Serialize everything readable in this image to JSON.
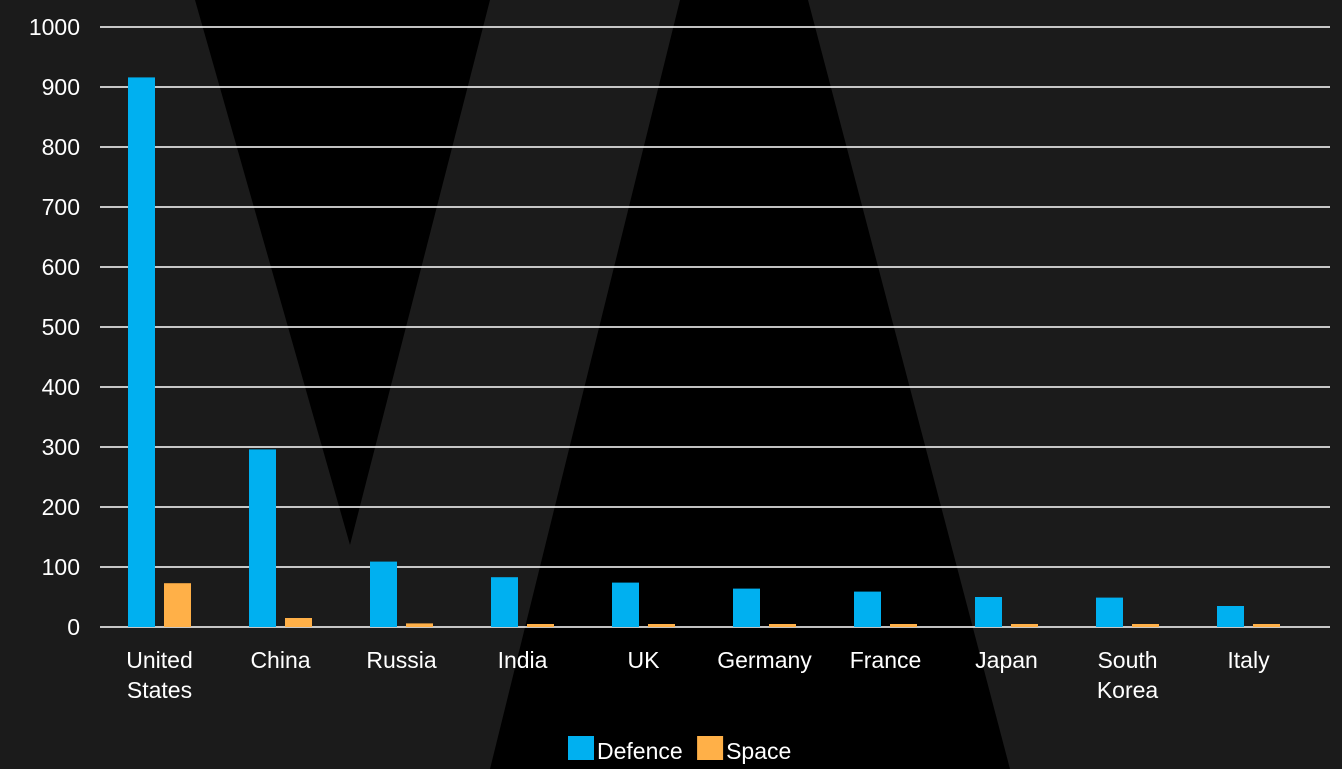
{
  "chart_data": {
    "type": "bar",
    "title": "",
    "xlabel": "",
    "ylabel": "",
    "ylim": [
      0,
      1000
    ],
    "yticks": [
      0,
      100,
      200,
      300,
      400,
      500,
      600,
      700,
      800,
      900,
      1000
    ],
    "grid": true,
    "legend_position": "bottom-center",
    "categories": [
      [
        "United",
        "States"
      ],
      [
        "China"
      ],
      [
        "Russia"
      ],
      [
        "India"
      ],
      [
        "UK"
      ],
      [
        "Germany"
      ],
      [
        "France"
      ],
      [
        "Japan"
      ],
      [
        "South",
        "Korea"
      ],
      [
        "Italy"
      ]
    ],
    "series": [
      {
        "name": "Defence",
        "color": "#00b0f0",
        "values": [
          916,
          296,
          109,
          83,
          74,
          64,
          59,
          50,
          49,
          35
        ]
      },
      {
        "name": "Space",
        "color": "#ffb048",
        "values": [
          73,
          15,
          6,
          5,
          5,
          5,
          5,
          5,
          5,
          5
        ]
      }
    ]
  },
  "colors": {
    "background": "#1b1b1b",
    "shape": "#000000",
    "gridline": "#ffffff",
    "text": "#ffffff"
  }
}
